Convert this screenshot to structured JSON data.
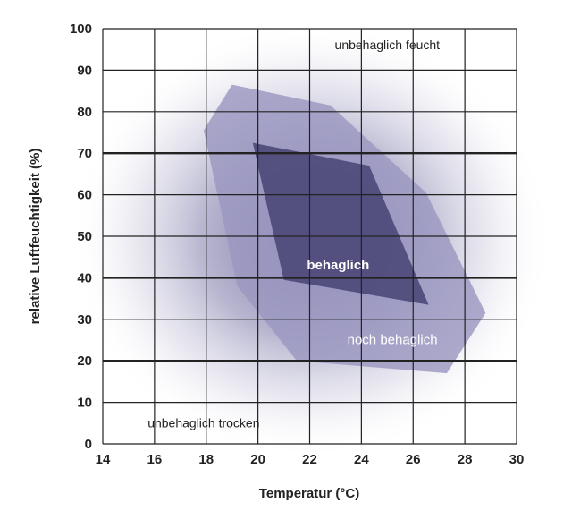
{
  "chart_data": {
    "type": "area",
    "xlabel": "Temperatur (°C)",
    "ylabel": "relative Luftfeuchtigkeit (%)",
    "xlim": [
      14,
      30
    ],
    "ylim": [
      0,
      100
    ],
    "x_ticks": [
      "14",
      "16",
      "18",
      "20",
      "22",
      "24",
      "26",
      "28",
      "30"
    ],
    "y_ticks": [
      "0",
      "10",
      "20",
      "30",
      "40",
      "50",
      "60",
      "70",
      "80",
      "90",
      "100"
    ],
    "emphasized_gridlines_y": [
      20,
      40,
      70
    ],
    "grid": true,
    "regions": [
      {
        "name": "noch behaglich",
        "color": "#9b97c1",
        "points": [
          [
            17.9,
            75.5
          ],
          [
            19.0,
            86.5
          ],
          [
            22.8,
            81.5
          ],
          [
            26.5,
            60.5
          ],
          [
            28.8,
            31.5
          ],
          [
            27.3,
            17.0
          ],
          [
            21.5,
            20.0
          ],
          [
            19.2,
            38.0
          ]
        ]
      },
      {
        "name": "behaglich",
        "color": "#4b4878",
        "points": [
          [
            19.8,
            72.5
          ],
          [
            24.3,
            67.0
          ],
          [
            26.6,
            33.5
          ],
          [
            21.0,
            39.5
          ]
        ]
      }
    ],
    "annotations": [
      {
        "text": "unbehaglich feucht",
        "x": 25.0,
        "y": 95.0
      },
      {
        "text": "behaglich",
        "x": 23.1,
        "y": 42.0
      },
      {
        "text": "noch behaglich",
        "x": 25.2,
        "y": 24.0
      },
      {
        "text": "unbehaglich trocken",
        "x": 17.9,
        "y": 4.0
      }
    ]
  }
}
